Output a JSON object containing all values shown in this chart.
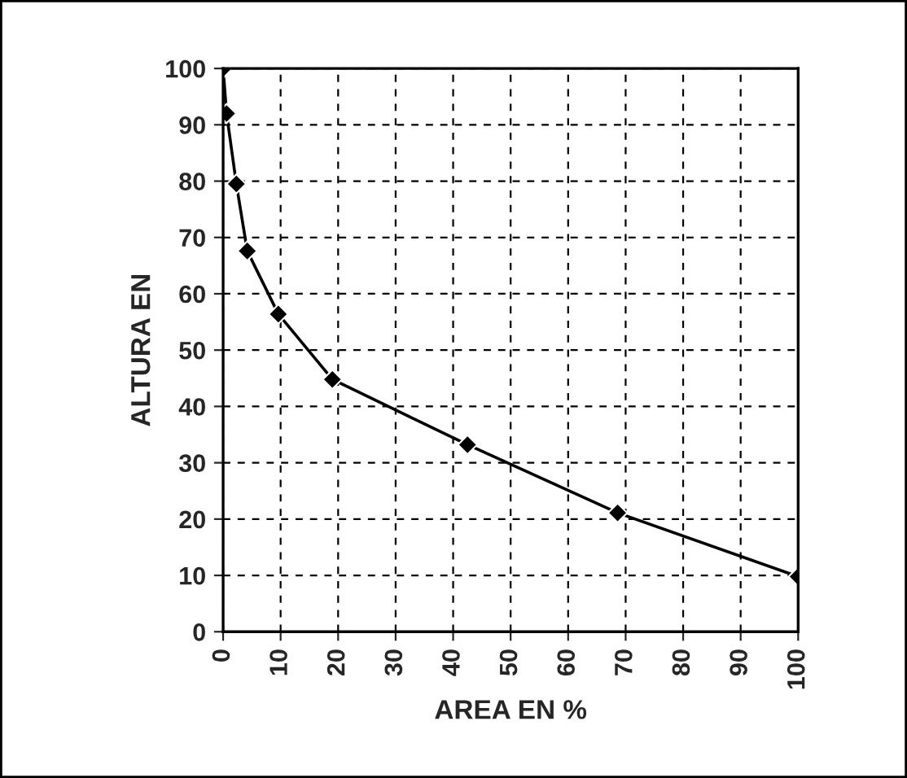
{
  "chart_data": {
    "type": "line",
    "xlabel": "AREA EN %",
    "ylabel": "ALTURA EN",
    "x": [
      0,
      0.6,
      2.3,
      4.2,
      9.6,
      19,
      42.5,
      68.6,
      100
    ],
    "series": [
      {
        "color": "#000000",
        "values": [
          100,
          92,
          79.5,
          67.6,
          56.4,
          44.8,
          33.2,
          21.1,
          9.8
        ]
      }
    ],
    "xlim": [
      0,
      100
    ],
    "xticks": [
      0,
      10,
      20,
      30,
      40,
      50,
      60,
      70,
      80,
      90,
      100
    ],
    "ylim": [
      0,
      100
    ],
    "yticks": [
      0,
      10,
      20,
      30,
      40,
      50,
      60,
      70,
      80,
      90,
      100
    ],
    "grid": true,
    "marker": "diamond",
    "line_style": "solid"
  }
}
